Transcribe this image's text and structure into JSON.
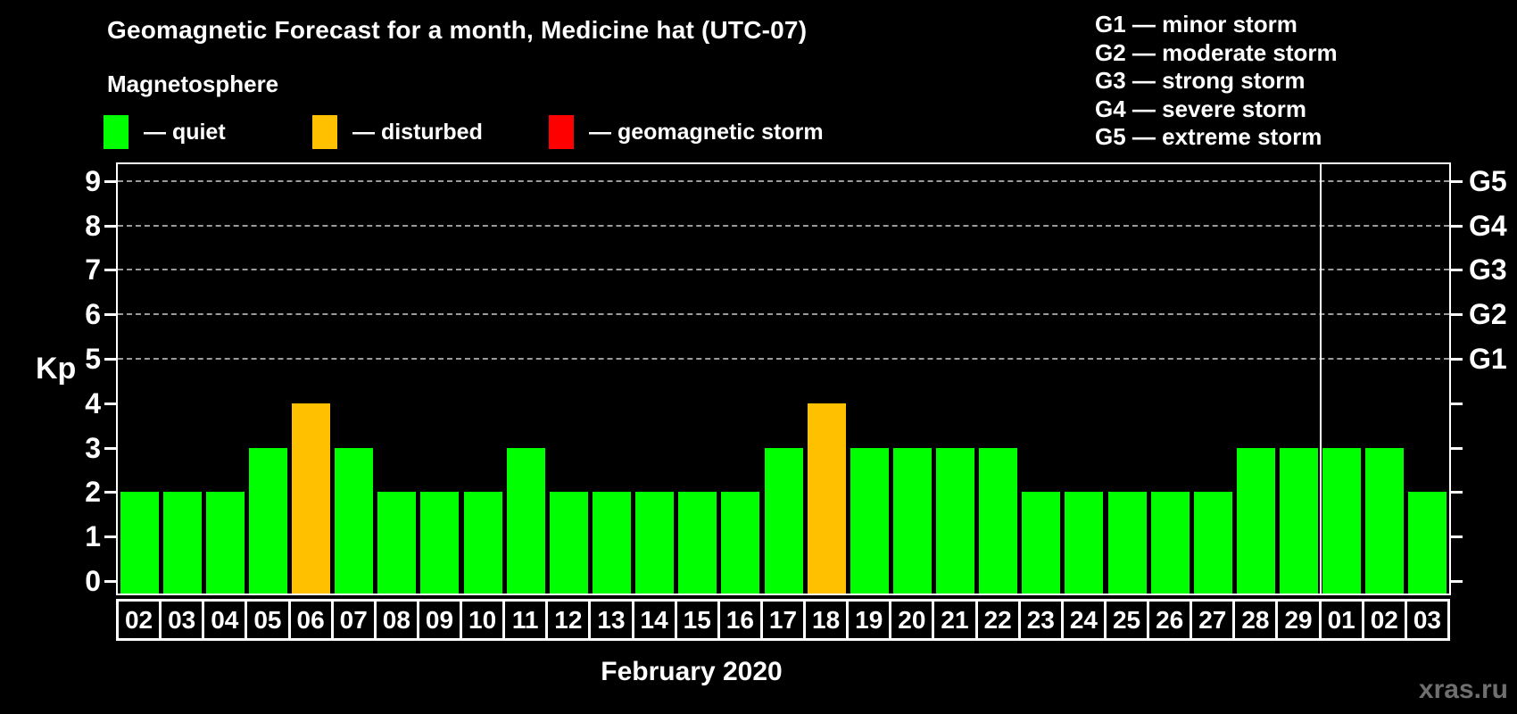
{
  "header": {
    "title": "Geomagnetic Forecast for a month, Medicine hat (UTC-07)",
    "subtitle": "Magnetosphere"
  },
  "legend": {
    "items": [
      {
        "key": "quiet",
        "label": "— quiet",
        "color": "#00ff00"
      },
      {
        "key": "disturbed",
        "label": "— disturbed",
        "color": "#ffc000"
      },
      {
        "key": "storm",
        "label": "— geomagnetic storm",
        "color": "#ff0000"
      }
    ]
  },
  "storm_scale_legend": {
    "items": [
      "G1 — minor storm",
      "G2 — moderate storm",
      "G3 — strong storm",
      "G4 — severe storm",
      "G5 — extreme storm"
    ]
  },
  "chart_data": {
    "type": "bar",
    "title": "Geomagnetic Forecast for a month, Medicine hat (UTC-07)",
    "xlabel": "February 2020",
    "ylabel": "Kp",
    "ylim": [
      0,
      9
    ],
    "y_ticks": [
      0,
      1,
      2,
      3,
      4,
      5,
      6,
      7,
      8,
      9
    ],
    "gridlines_at": [
      5,
      6,
      7,
      8,
      9
    ],
    "grid": "horizontal dashed lines at Kp 5–9 only",
    "right_axis": [
      {
        "label": "G1",
        "kp": 5
      },
      {
        "label": "G2",
        "kp": 6
      },
      {
        "label": "G3",
        "kp": 7
      },
      {
        "label": "G4",
        "kp": 8
      },
      {
        "label": "G5",
        "kp": 9
      }
    ],
    "categories": [
      "02",
      "03",
      "04",
      "05",
      "06",
      "07",
      "08",
      "09",
      "10",
      "11",
      "12",
      "13",
      "14",
      "15",
      "16",
      "17",
      "18",
      "19",
      "20",
      "21",
      "22",
      "23",
      "24",
      "25",
      "26",
      "27",
      "28",
      "29",
      "01",
      "02",
      "03"
    ],
    "values": [
      2,
      2,
      2,
      3,
      4,
      3,
      2,
      2,
      2,
      3,
      2,
      2,
      2,
      2,
      2,
      3,
      4,
      3,
      3,
      3,
      3,
      2,
      2,
      2,
      2,
      2,
      3,
      3,
      3,
      3,
      2
    ],
    "statuses": [
      "quiet",
      "quiet",
      "quiet",
      "quiet",
      "disturbed",
      "quiet",
      "quiet",
      "quiet",
      "quiet",
      "quiet",
      "quiet",
      "quiet",
      "quiet",
      "quiet",
      "quiet",
      "quiet",
      "disturbed",
      "quiet",
      "quiet",
      "quiet",
      "quiet",
      "quiet",
      "quiet",
      "quiet",
      "quiet",
      "quiet",
      "quiet",
      "quiet",
      "quiet",
      "quiet",
      "quiet"
    ],
    "colors": {
      "quiet": "#00ff00",
      "disturbed": "#ffc000",
      "storm": "#ff0000"
    },
    "month_separator_after_index": 27,
    "legend_position": "top-left"
  },
  "footer": {
    "watermark": "xras.ru"
  }
}
